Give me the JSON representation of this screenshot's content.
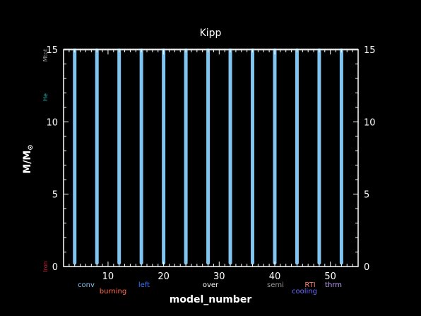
{
  "chart_data": {
    "type": "bar",
    "title": "Kipp",
    "xlabel": "model_number",
    "ylabel_main": "M/M",
    "ylabel_sub": "⊙",
    "xlim": [
      2,
      55
    ],
    "ylim": [
      0,
      15
    ],
    "x_ticks": [
      10,
      20,
      30,
      40,
      50
    ],
    "y_ticks": [
      0,
      5,
      10,
      15
    ],
    "grid": false,
    "bars": {
      "x": [
        4,
        8,
        12,
        16,
        20,
        24,
        28,
        32,
        36,
        40,
        44,
        48,
        52
      ],
      "bottom": 0.25,
      "top": 14.95,
      "color": "#80c4f0"
    },
    "total_mass": 15,
    "left_labels": [
      {
        "text": "Mtot",
        "y": 14.6,
        "color": "#9a9a9a"
      },
      {
        "text": "He",
        "y": 11.7,
        "color": "#20b0b0"
      },
      {
        "text": "Iron",
        "y": 0.0,
        "color": "#e0203a"
      }
    ],
    "legend": [
      {
        "text": "conv",
        "color": "#80c4f0"
      },
      {
        "text": "burning",
        "color": "#ff6a4a"
      },
      {
        "text": "left",
        "color": "#3a7aff"
      },
      {
        "text": "over",
        "color": "#ffffff"
      },
      {
        "text": "semi",
        "color": "#9a9a9a"
      },
      {
        "text": "cooling",
        "color": "#6a6aff"
      },
      {
        "text": "RTI",
        "color": "#ff7a6a"
      },
      {
        "text": "thrm",
        "color": "#c8a8ff"
      }
    ],
    "colors": {
      "background": "#000000",
      "axis": "#ffffff",
      "total_line": "#7a7a7a"
    }
  }
}
